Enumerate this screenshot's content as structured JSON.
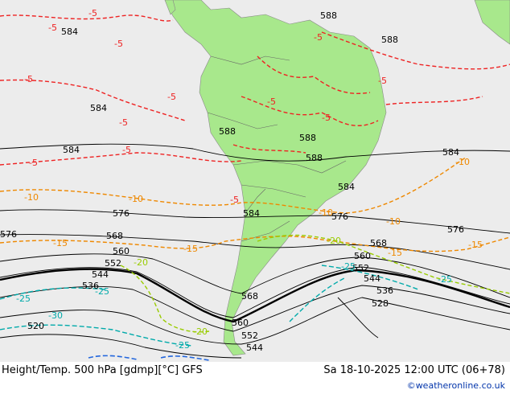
{
  "footer": {
    "title": "Height/Temp. 500 hPa [gdmp][°C] GFS",
    "valid": "Sa 18-10-2025 12:00 UTC (06+78)",
    "credit": "©weatheronline.co.uk"
  },
  "colors": {
    "ocean": "#ececec",
    "land": "#a8e88c",
    "height_contour": "#000000",
    "temp_warm": "#ee2222",
    "temp_orange": "#ee8800",
    "temp_green": "#99cc00",
    "temp_cold": "#00aaaa",
    "temp_blue": "#2266dd"
  },
  "height_labels": [
    "588",
    "588",
    "584",
    "584",
    "584",
    "588",
    "588",
    "588",
    "584",
    "584",
    "576",
    "576",
    "576",
    "576",
    "584",
    "568",
    "568",
    "560",
    "560",
    "552",
    "552",
    "544",
    "544",
    "536",
    "536",
    "528",
    "520",
    "568",
    "560",
    "552",
    "544"
  ],
  "temp_labels": [
    "-5",
    "-5",
    "-5",
    "-5",
    "-5",
    "-5",
    "-5",
    "-5",
    "-5",
    "-5",
    "-5",
    "-5",
    "-5",
    "-10",
    "-10",
    "-10",
    "-10",
    "-10",
    "-15",
    "-15",
    "-15",
    "-15",
    "-20",
    "-20",
    "-20",
    "-25",
    "-25",
    "-25",
    "-25",
    "-30",
    "-25"
  ]
}
